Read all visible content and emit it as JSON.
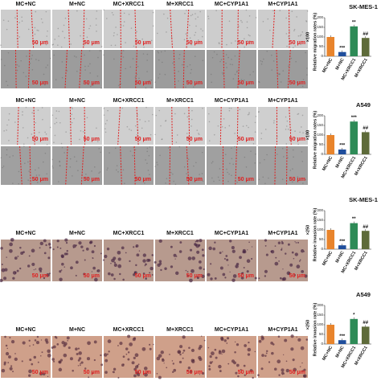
{
  "panels": [
    {
      "columns": [
        "MC+NC",
        "M+NC",
        "MC+XRCC1",
        "M+XRCC1",
        "MC+CYP1A1",
        "M+CYP1A1"
      ],
      "scale_bar": "50 μm"
    },
    {
      "columns": [
        "MC+NC",
        "M+NC",
        "MC+XRCC1",
        "M+XRCC1",
        "MC+CYP1A1",
        "M+CYP1A1"
      ],
      "scale_bar": "50 μm"
    },
    {
      "columns": [
        "MC+NC",
        "M+NC",
        "MC+XRCC1",
        "M+XRCC1",
        "MC+CYP1A1",
        "M+CYP1A1"
      ],
      "scale_bar": "50 μm"
    },
    {
      "columns": [
        "MC+NC",
        "M+NC",
        "MC+XRCC1",
        "M+XRCC1",
        "MC+CYP1A1",
        "M+CYP1A1"
      ],
      "scale_bar": "50 μm"
    }
  ],
  "chart_data": [
    {
      "type": "bar",
      "title": "SK-MES-1",
      "magnification": "×100",
      "y_label": "Relative migration rates (%)",
      "categories": [
        "MC+NC",
        "M+NC",
        "MC+XRCC1",
        "M+XRCC1"
      ],
      "values": [
        100,
        22,
        155,
        95
      ],
      "annotations": [
        null,
        "***",
        "**",
        "##"
      ],
      "colors": [
        "#e8842c",
        "#1f4e9c",
        "#2e8b57",
        "#5e6b3a"
      ],
      "ylim": [
        0,
        200
      ],
      "yticks": [
        0,
        50,
        100,
        150,
        200
      ]
    },
    {
      "type": "bar",
      "title": "A549",
      "magnification": "×100",
      "y_label": "Relative migration rates (%)",
      "categories": [
        "MC+NC",
        "M+NC",
        "MC+XRCC1",
        "M+XRCC1"
      ],
      "values": [
        100,
        25,
        170,
        115
      ],
      "annotations": [
        null,
        "***",
        "***",
        "##"
      ],
      "colors": [
        "#e8842c",
        "#1f4e9c",
        "#2e8b57",
        "#5e6b3a"
      ],
      "ylim": [
        0,
        200
      ],
      "yticks": [
        0,
        50,
        100,
        150,
        200
      ]
    },
    {
      "type": "bar",
      "title": "SK-MES-1",
      "magnification": "×250",
      "y_label": "Relative invasion rate (%)",
      "categories": [
        "MC+NC",
        "M+NC",
        "MC+XRCC1",
        "M+XRCC1"
      ],
      "values": [
        100,
        20,
        135,
        95
      ],
      "annotations": [
        null,
        "***",
        "**",
        "##"
      ],
      "colors": [
        "#e8842c",
        "#1f4e9c",
        "#2e8b57",
        "#5e6b3a"
      ],
      "ylim": [
        0,
        200
      ],
      "yticks": [
        0,
        50,
        100,
        150,
        200
      ]
    },
    {
      "type": "bar",
      "title": "A549",
      "magnification": "×250",
      "y_label": "Relative invasion rate (%)",
      "categories": [
        "MC+NC",
        "M+NC",
        "MC+XRCC1",
        "M+XRCC1"
      ],
      "values": [
        100,
        20,
        130,
        90
      ],
      "annotations": [
        null,
        "***",
        "*",
        "##"
      ],
      "colors": [
        "#e8842c",
        "#1f4e9c",
        "#2e8b57",
        "#5e6b3a"
      ],
      "ylim": [
        0,
        200
      ],
      "yticks": [
        0,
        50,
        100,
        150,
        200
      ]
    }
  ]
}
